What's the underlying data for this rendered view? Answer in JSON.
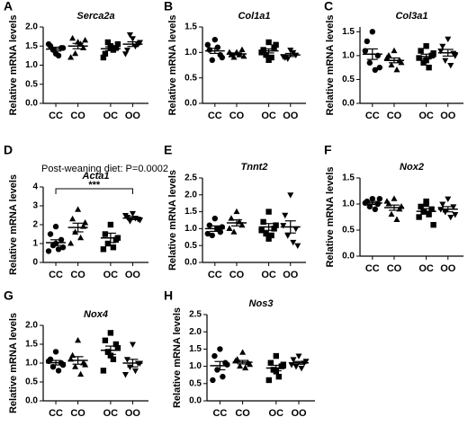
{
  "chart_data": [
    {
      "type": "dot",
      "label": "A",
      "title": "Serca2a",
      "ylabel": "Relative mRNA levels",
      "categories": [
        "CC",
        "CO",
        "OC",
        "OO"
      ],
      "markers": [
        "circle",
        "triangle",
        "square",
        "triangle-down"
      ],
      "color": "#000000",
      "values": [
        [
          1.3,
          1.5,
          1.45,
          1.4,
          1.25,
          1.55,
          1.45
        ],
        [
          1.6,
          1.7,
          1.45,
          1.3,
          1.55,
          1.2,
          1.65
        ],
        [
          1.5,
          1.3,
          1.45,
          1.6,
          1.4,
          1.2,
          1.55,
          1.45
        ],
        [
          1.7,
          1.4,
          1.55,
          1.8,
          1.5,
          1.3,
          1.6
        ]
      ],
      "means": [
        1.42,
        1.5,
        1.43,
        1.55
      ],
      "sems": [
        0.05,
        0.07,
        0.05,
        0.06
      ],
      "ylim": [
        0,
        2
      ],
      "yticks": [
        {
          "value": 0,
          "label": "0.0"
        },
        0.5,
        {
          "value": 1,
          "label": "1.0"
        },
        1.5,
        {
          "value": 2,
          "label": "2.0"
        }
      ]
    },
    {
      "type": "dot",
      "label": "B",
      "title": "Col1a1",
      "ylabel": "Relative mRNA levels",
      "categories": [
        "CC",
        "CO",
        "OC",
        "OO"
      ],
      "markers": [
        "circle",
        "triangle",
        "square",
        "triangle-down"
      ],
      "color": "#000000",
      "values": [
        [
          1.25,
          1.05,
          0.95,
          0.85,
          1.1,
          1.15,
          0.9
        ],
        [
          1.0,
          0.95,
          1.05,
          0.9,
          0.95,
          1.0,
          0.92
        ],
        [
          1.2,
          1.05,
          1.1,
          0.95,
          0.9,
          1.0,
          1.15,
          0.85
        ],
        [
          1.05,
          0.9,
          0.95,
          0.88,
          1.0,
          0.92
        ]
      ],
      "means": [
        1.03,
        0.97,
        1.03,
        0.95
      ],
      "sems": [
        0.05,
        0.02,
        0.04,
        0.03
      ],
      "ylim": [
        0,
        1.5
      ],
      "yticks": [
        {
          "value": 0,
          "label": "0.0"
        },
        0.5,
        {
          "value": 1,
          "label": "1.0"
        },
        1.5
      ]
    },
    {
      "type": "dot",
      "label": "C",
      "title": "Col3a1",
      "ylabel": "Relative mRNA levels",
      "categories": [
        "CC",
        "CO",
        "OC",
        "OO"
      ],
      "markers": [
        "circle",
        "triangle",
        "square",
        "triangle-down"
      ],
      "color": "#000000",
      "values": [
        [
          1.5,
          1.3,
          1.0,
          0.85,
          0.7,
          1.1,
          0.75
        ],
        [
          1.1,
          1.0,
          0.9,
          0.8,
          0.7,
          0.95,
          0.85
        ],
        [
          1.2,
          1.1,
          1.0,
          0.85,
          0.75,
          0.95,
          1.05,
          0.9
        ],
        [
          1.35,
          1.2,
          1.05,
          0.9,
          0.8,
          1.1,
          1.0
        ]
      ],
      "means": [
        1.03,
        0.9,
        0.98,
        1.06
      ],
      "sems": [
        0.11,
        0.05,
        0.05,
        0.07
      ],
      "ylim": [
        0,
        1.6
      ],
      "yticks": [
        {
          "value": 0,
          "label": "0.0"
        },
        0.5,
        {
          "value": 1,
          "label": "1.0"
        },
        1.5
      ]
    },
    {
      "type": "dot",
      "label": "D",
      "title": "Acta1",
      "annotation": "Post-weaning diet: P=0.0002",
      "significance": "***",
      "ylabel": "Relative mRNA levels",
      "categories": [
        "CC",
        "CO",
        "OC",
        "OO"
      ],
      "markers": [
        "circle",
        "triangle",
        "square",
        "triangle-down"
      ],
      "color": "#000000",
      "values": [
        [
          1.9,
          1.5,
          1.2,
          0.9,
          0.7,
          0.6,
          0.8,
          1.0
        ],
        [
          2.8,
          2.3,
          1.9,
          1.6,
          1.3,
          1.0,
          2.1
        ],
        [
          2.0,
          1.5,
          1.2,
          1.0,
          0.8,
          0.7,
          1.3
        ],
        [
          2.6,
          2.4,
          2.3,
          2.2,
          2.35,
          2.5,
          2.25
        ]
      ],
      "means": [
        1.05,
        1.85,
        1.3,
        2.35
      ],
      "sems": [
        0.15,
        0.23,
        0.25,
        0.08
      ],
      "ylim": [
        0,
        4
      ],
      "yticks": [
        0,
        1,
        2,
        3,
        4
      ]
    },
    {
      "type": "dot",
      "label": "E",
      "title": "Tnnt2",
      "ylabel": "Relative mRNA levels",
      "categories": [
        "CC",
        "CO",
        "OC",
        "OO"
      ],
      "markers": [
        "circle",
        "triangle",
        "square",
        "triangle-down"
      ],
      "color": "#000000",
      "values": [
        [
          1.3,
          1.1,
          0.9,
          0.8,
          1.0,
          0.85,
          1.05
        ],
        [
          1.5,
          1.3,
          1.1,
          0.9,
          1.2,
          1.0
        ],
        [
          1.5,
          1.2,
          1.0,
          0.85,
          0.8,
          0.95,
          1.1,
          0.7
        ],
        [
          2.0,
          1.4,
          1.0,
          0.8,
          0.6,
          1.1,
          0.5
        ]
      ],
      "means": [
        1.0,
        1.17,
        1.05,
        1.05
      ],
      "sems": [
        0.08,
        0.09,
        0.1,
        0.18
      ],
      "ylim": [
        0,
        2.5
      ],
      "yticks": [
        {
          "value": 0,
          "label": "0.0"
        },
        0.5,
        {
          "value": 1,
          "label": "1.0"
        },
        1.5,
        {
          "value": 2,
          "label": "2.0"
        },
        2.5
      ]
    },
    {
      "type": "dot",
      "label": "F",
      "title": "Nox2",
      "ylabel": "Relative mRNA levels",
      "categories": [
        "CC",
        "CO",
        "OC",
        "OO"
      ],
      "markers": [
        "circle",
        "triangle",
        "square",
        "triangle-down"
      ],
      "color": "#000000",
      "values": [
        [
          1.1,
          1.05,
          1.0,
          0.95,
          0.9,
          1.02,
          1.1
        ],
        [
          1.1,
          1.0,
          0.9,
          0.8,
          0.7,
          1.05,
          0.95
        ],
        [
          1.05,
          0.95,
          0.9,
          0.85,
          0.8,
          0.75,
          0.6,
          1.0
        ],
        [
          1.1,
          1.0,
          0.95,
          0.85,
          0.75,
          0.9,
          0.8
        ]
      ],
      "means": [
        1.02,
        0.93,
        0.86,
        0.9
      ],
      "sems": [
        0.03,
        0.05,
        0.05,
        0.05
      ],
      "ylim": [
        0,
        1.5
      ],
      "yticks": [
        {
          "value": 0,
          "label": "0.0"
        },
        0.5,
        {
          "value": 1,
          "label": "1.0"
        },
        1.5
      ]
    },
    {
      "type": "dot",
      "label": "G",
      "title": "Nox4",
      "ylabel": "Relative mRNA levels",
      "categories": [
        "CC",
        "CO",
        "OC",
        "OO"
      ],
      "markers": [
        "circle",
        "triangle",
        "square",
        "triangle-down"
      ],
      "color": "#000000",
      "values": [
        [
          1.3,
          1.1,
          1.0,
          0.9,
          0.8,
          1.05,
          0.95
        ],
        [
          1.6,
          1.2,
          1.0,
          0.9,
          0.7,
          1.1,
          0.95
        ],
        [
          1.8,
          1.6,
          1.5,
          1.3,
          1.1,
          0.8,
          1.4,
          1.2
        ],
        [
          1.5,
          1.1,
          1.0,
          0.9,
          0.8,
          0.7,
          1.0
        ]
      ],
      "means": [
        1.01,
        1.07,
        1.34,
        1.0
      ],
      "sems": [
        0.06,
        0.1,
        0.11,
        0.1
      ],
      "ylim": [
        0,
        2
      ],
      "yticks": [
        {
          "value": 0,
          "label": "0.0"
        },
        0.5,
        {
          "value": 1,
          "label": "1.0"
        },
        1.5,
        {
          "value": 2,
          "label": "2.0"
        }
      ]
    },
    {
      "type": "dot",
      "label": "H",
      "title": "Nos3",
      "ylabel": "Relative mRNA levels",
      "categories": [
        "CC",
        "CO",
        "OC",
        "OO"
      ],
      "markers": [
        "circle",
        "triangle",
        "square",
        "triangle-down"
      ],
      "color": "#000000",
      "values": [
        [
          1.5,
          1.3,
          1.1,
          0.9,
          0.7,
          0.6,
          1.05
        ],
        [
          1.4,
          1.2,
          1.1,
          1.0,
          0.95,
          1.15,
          1.05
        ],
        [
          1.3,
          1.1,
          1.0,
          0.9,
          0.7,
          0.6,
          1.05,
          0.85
        ],
        [
          1.3,
          1.2,
          1.1,
          1.0,
          0.95,
          1.05,
          1.15
        ]
      ],
      "means": [
        1.02,
        1.12,
        0.95,
        1.1
      ],
      "sems": [
        0.12,
        0.05,
        0.08,
        0.04
      ],
      "ylim": [
        0,
        2.5
      ],
      "yticks": [
        {
          "value": 0,
          "label": "0.0"
        },
        0.5,
        {
          "value": 1,
          "label": "1.0"
        },
        1.5,
        {
          "value": 2,
          "label": "2.0"
        },
        2.5
      ]
    }
  ]
}
